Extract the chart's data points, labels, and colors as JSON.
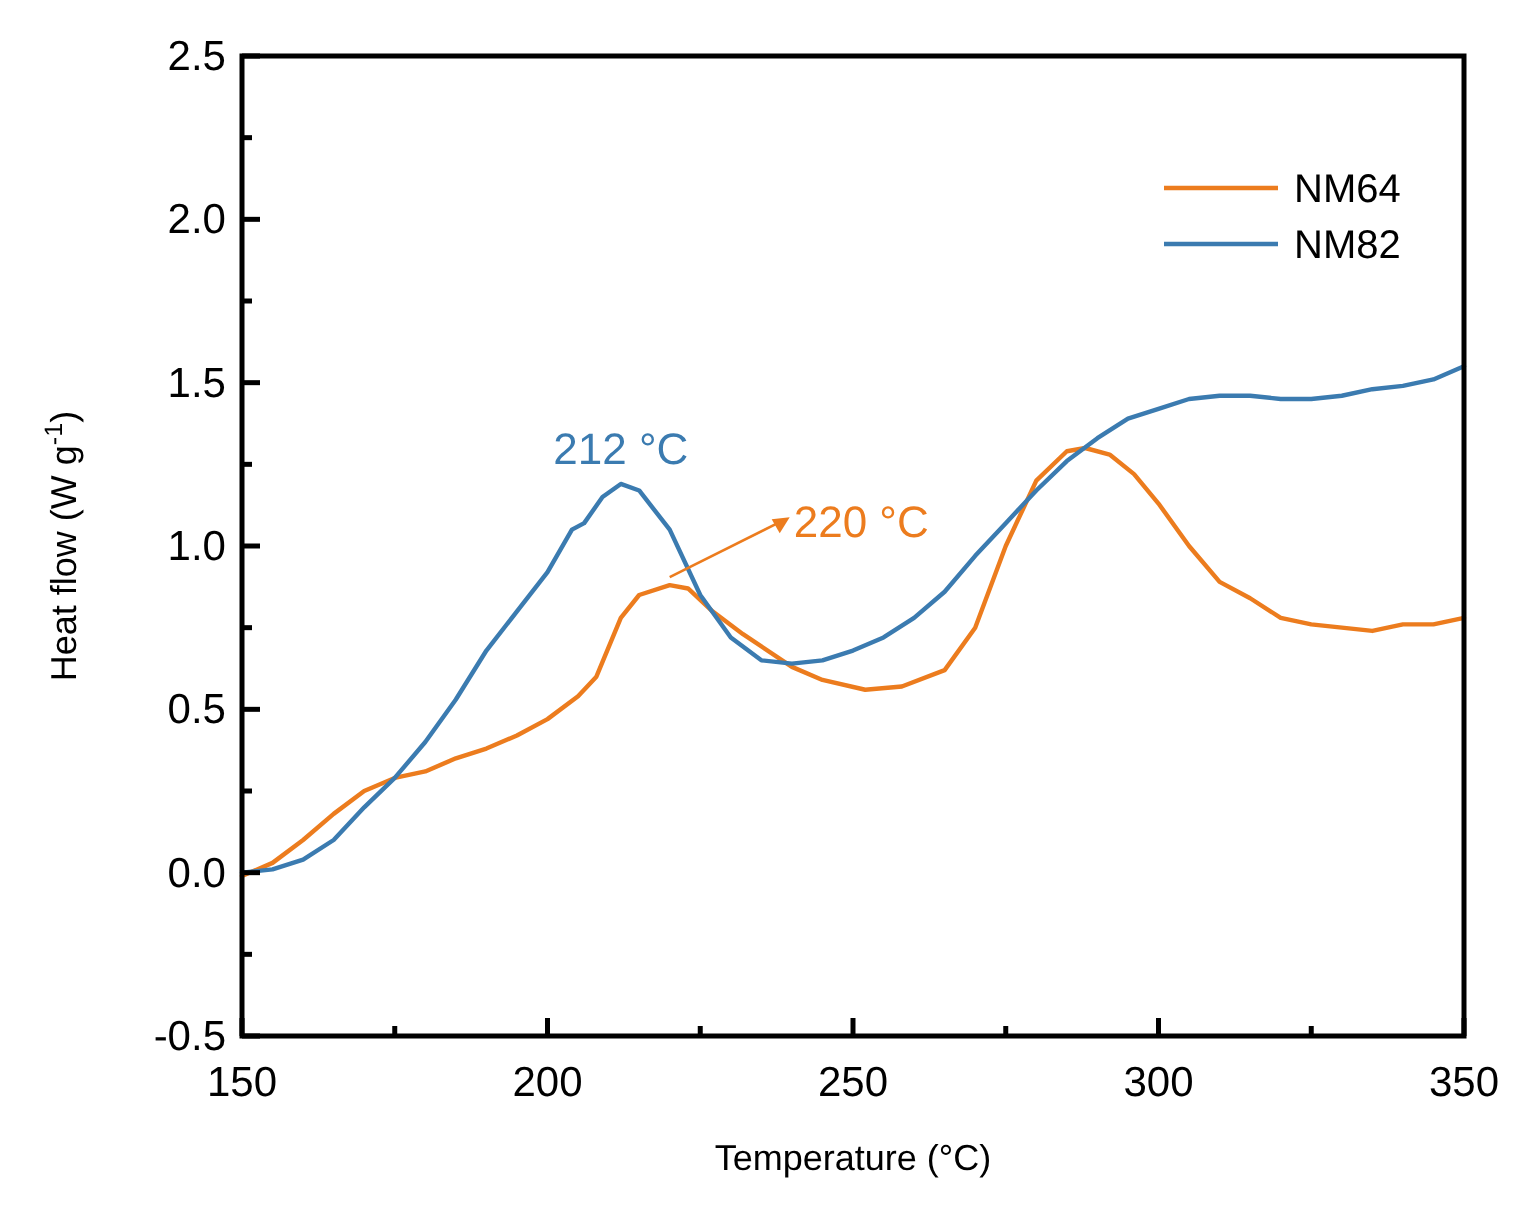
{
  "chart_data": {
    "type": "line",
    "xlabel": "Temperature (°C)",
    "ylabel": "Heat flow (W g$^{-1}$)",
    "xlim": [
      150,
      350
    ],
    "ylim": [
      -0.5,
      2.5
    ],
    "xticks": [
      150,
      {
        "value": 175,
        "label": null
      },
      200,
      {
        "value": 225,
        "label": null
      },
      250,
      {
        "value": 275,
        "label": null
      },
      300,
      {
        "value": 325,
        "label": null
      },
      350
    ],
    "yticks": [
      {
        "value": -0.5,
        "label": "-0.5"
      },
      {
        "value": -0.25,
        "label": null
      },
      {
        "value": 0,
        "label": "0.0"
      },
      {
        "value": 0.25,
        "label": null
      },
      0.5,
      {
        "value": 0.75,
        "label": null
      },
      {
        "value": 1,
        "label": "1.0"
      },
      {
        "value": 1.25,
        "label": null
      },
      1.5,
      {
        "value": 1.75,
        "label": null
      },
      {
        "value": 2,
        "label": "2.0"
      },
      {
        "value": 2.25,
        "label": null
      },
      2.5
    ],
    "grid": false,
    "legend": "top right",
    "line_style": "solid",
    "marker": "none",
    "annotations": [
      {
        "text": "220 °C",
        "x": 220,
        "y": 0.88
      },
      {
        "text": "212 °C",
        "x": 212,
        "y": 1.19
      }
    ],
    "series": [
      {
        "name": "NM64",
        "color": "#ec7c1e",
        "x": [
          150,
          155,
          160,
          165,
          170,
          175,
          180,
          185,
          190,
          195,
          200,
          205,
          208,
          212,
          215,
          220,
          223,
          227,
          232,
          240,
          245,
          252,
          258,
          265,
          270,
          275,
          280,
          285,
          288,
          292,
          296,
          300,
          305,
          310,
          315,
          320,
          325,
          330,
          335,
          340,
          345,
          350
        ],
        "values": [
          -0.01,
          0.03,
          0.1,
          0.18,
          0.25,
          0.29,
          0.31,
          0.35,
          0.38,
          0.42,
          0.47,
          0.54,
          0.6,
          0.78,
          0.85,
          0.88,
          0.87,
          0.8,
          0.73,
          0.63,
          0.59,
          0.56,
          0.57,
          0.62,
          0.75,
          1.0,
          1.2,
          1.29,
          1.3,
          1.28,
          1.22,
          1.13,
          1.0,
          0.89,
          0.84,
          0.78,
          0.76,
          0.75,
          0.74,
          0.76,
          0.76,
          0.78
        ]
      },
      {
        "name": "NM82",
        "color": "#3b7bb0",
        "x": [
          150,
          155,
          160,
          165,
          170,
          175,
          180,
          185,
          190,
          195,
          200,
          204,
          206,
          209,
          212,
          215,
          220,
          225,
          230,
          235,
          240,
          245,
          250,
          255,
          260,
          265,
          270,
          275,
          280,
          285,
          290,
          295,
          300,
          305,
          310,
          315,
          320,
          325,
          330,
          335,
          340,
          345,
          350
        ],
        "values": [
          0.0,
          0.01,
          0.04,
          0.1,
          0.2,
          0.29,
          0.4,
          0.53,
          0.68,
          0.8,
          0.92,
          1.05,
          1.07,
          1.15,
          1.19,
          1.17,
          1.05,
          0.85,
          0.72,
          0.65,
          0.64,
          0.65,
          0.68,
          0.72,
          0.78,
          0.86,
          0.97,
          1.07,
          1.17,
          1.26,
          1.33,
          1.39,
          1.42,
          1.45,
          1.46,
          1.46,
          1.45,
          1.45,
          1.46,
          1.48,
          1.49,
          1.51,
          1.55
        ]
      }
    ]
  }
}
